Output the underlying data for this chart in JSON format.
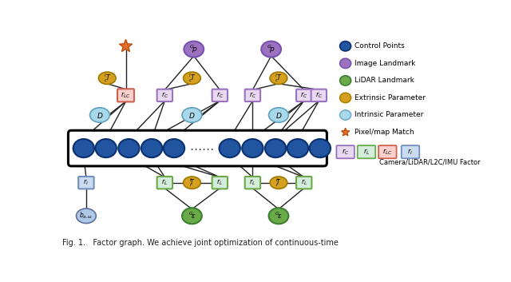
{
  "colors": {
    "control_point": "#2255a0",
    "image_landmark": "#9b72c0",
    "lidar_landmark": "#6aaa48",
    "extrinsic": "#d4a020",
    "intrinsic": "#a8d8ea",
    "camera_factor_bg": "#e8d8f0",
    "camera_factor_border": "#9b72c0",
    "lidar_factor_bg": "#d4edda",
    "lidar_factor_border": "#6aaa48",
    "l2c_factor_bg": "#f8d0cc",
    "l2c_factor_border": "#d06050",
    "imu_factor_bg": "#ccdcf0",
    "imu_factor_border": "#7090c0",
    "star_color": "#e07030",
    "bias_color": "#b0c8e8",
    "bias_border": "#6070a0"
  },
  "legend": {
    "items": [
      {
        "label": "Control Points",
        "color": "#2255a0",
        "border": "#0a3070"
      },
      {
        "label": "Image Landmark",
        "color": "#9b72c0",
        "border": "#7755aa"
      },
      {
        "label": "LiDAR Landmark",
        "color": "#6aaa48",
        "border": "#3a8030"
      },
      {
        "label": "Extrinsic Parameter",
        "color": "#d4a020",
        "border": "#b08000"
      },
      {
        "label": "Intrinsic Parameter",
        "color": "#a8d8ea",
        "border": "#70b0d0"
      }
    ],
    "factor_labels": [
      "$r_C$",
      "$r_L$",
      "$r_{LC}$",
      "$r_I$"
    ],
    "factor_label_text": "Camera/LiDAR/L2C/IMU Factor"
  },
  "caption": "Fig. 1.   Factor graph. We achieve joint optimization of continuous-time"
}
